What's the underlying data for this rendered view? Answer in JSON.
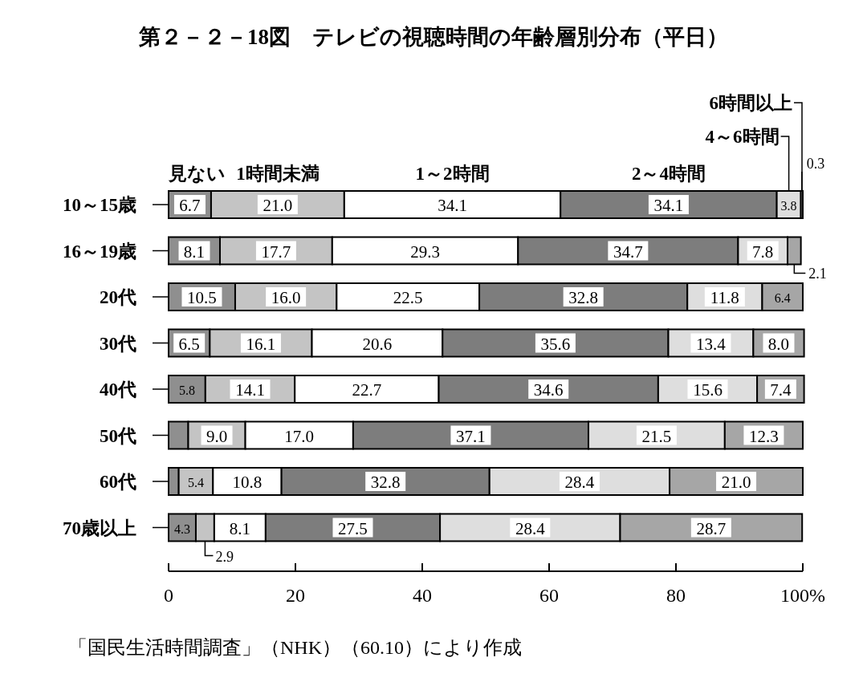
{
  "chart_data": {
    "type": "bar",
    "orientation": "horizontal",
    "stacked": true,
    "title": "第２－２－18図　テレビの視聴時間の年齢層別分布（平日）",
    "categories": [
      "10～15歳",
      "16～19歳",
      "20代",
      "30代",
      "40代",
      "50代",
      "60代",
      "70歳以上"
    ],
    "series": [
      {
        "name": "見ない",
        "color": "#8f8f8f",
        "values": [
          6.7,
          8.1,
          10.5,
          6.5,
          5.8,
          3.1,
          1.6,
          4.3
        ],
        "value_labels": [
          "6.7",
          "8.1",
          "10.5",
          "6.5",
          "5.8",
          null,
          null,
          "4.3"
        ]
      },
      {
        "name": "1時間未満",
        "color": "#c4c4c4",
        "values": [
          21.0,
          17.7,
          16.0,
          16.1,
          14.1,
          9.0,
          5.4,
          2.9
        ],
        "value_labels": [
          "21.0",
          "17.7",
          "16.0",
          "16.1",
          "14.1",
          "9.0",
          "5.4",
          "2.9"
        ]
      },
      {
        "name": "1～2時間",
        "color": "#ffffff",
        "values": [
          34.1,
          29.3,
          22.5,
          20.6,
          22.7,
          17.0,
          10.8,
          8.1
        ],
        "value_labels": [
          "34.1",
          "29.3",
          "22.5",
          "20.6",
          "22.7",
          "17.0",
          "10.8",
          "8.1"
        ]
      },
      {
        "name": "2～4時間",
        "color": "#7d7d7d",
        "values": [
          34.1,
          34.7,
          32.8,
          35.6,
          34.6,
          37.1,
          32.8,
          27.5
        ],
        "value_labels": [
          "34.1",
          "34.7",
          "32.8",
          "35.6",
          "34.6",
          "37.1",
          "32.8",
          "27.5"
        ]
      },
      {
        "name": "4～6時間",
        "color": "#dedede",
        "values": [
          3.8,
          7.8,
          11.8,
          13.4,
          15.6,
          21.5,
          28.4,
          28.4
        ],
        "value_labels": [
          "3.8",
          "7.8",
          "11.8",
          "13.4",
          "15.6",
          "21.5",
          "28.4",
          "28.4"
        ]
      },
      {
        "name": "6時間以上",
        "color": "#a6a6a6",
        "values": [
          0.3,
          2.1,
          6.4,
          8.0,
          7.4,
          12.3,
          21.0,
          28.7
        ],
        "value_labels": [
          "0.3",
          "2.1",
          "6.4",
          "8.0",
          "7.4",
          "12.3",
          "21.0",
          "28.7"
        ]
      }
    ],
    "xlim": [
      0,
      100
    ],
    "xticks": [
      0,
      20,
      40,
      60,
      80,
      {
        "value": 100,
        "label": "100%"
      }
    ],
    "annotations": [
      "「国民生活時間調査」（NHK）（60.10）により作成"
    ]
  }
}
